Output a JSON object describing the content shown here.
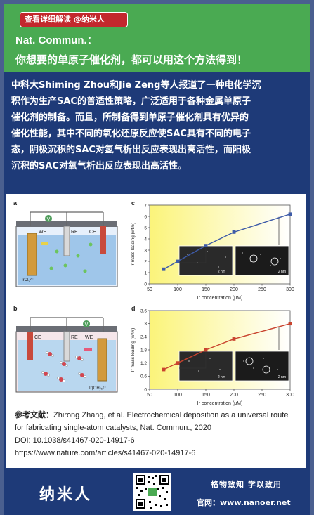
{
  "header": {
    "read_button": "查看详细解读   @纳米人",
    "journal": "Nat. Commun.：",
    "headline": "你想要的单原子催化剂，都可以用这个方法得到！"
  },
  "summary": {
    "lines": [
      "中科大Shiming Zhou和Jie Zeng等人报道了一种电化学沉",
      "积作为生产SAC的普适性策略，广泛适用于各种金属单原子",
      "催化剂的制备。而且，所制备得到单原子催化剂具有优异的",
      "催化性能，其中不同的氧化还原反应使SAC具有不同的电子",
      "态，阴极沉积的SAC对氢气析出反应表现出高活性，而阳极",
      "沉积的SAC对氧气析出反应表现出高活性。"
    ]
  },
  "figure": {
    "panel_a": "a",
    "panel_b": "b",
    "panel_c": "c",
    "panel_d": "d",
    "cell_a": {
      "we": "WE",
      "re": "RE",
      "ce": "CE",
      "v": "V",
      "precursor": "IrCl₆²⁻"
    },
    "cell_b": {
      "we": "WE",
      "re": "RE",
      "ce": "CE",
      "v": "V",
      "precursor": "Ir(OH)₆²⁻"
    },
    "scale_bar": "2 nm"
  },
  "chart_data": [
    {
      "type": "line",
      "panel": "c",
      "xlabel": "Ir concentration (μM)",
      "ylabel": "Ir mass loading (wt%)",
      "xlim": [
        50,
        300
      ],
      "ylim": [
        0,
        7
      ],
      "x_ticks": [
        50,
        100,
        150,
        200,
        250,
        300
      ],
      "y_ticks": [
        0,
        1,
        2,
        3,
        4,
        5,
        6,
        7
      ],
      "x": [
        75,
        100,
        150,
        200,
        300
      ],
      "values": [
        1.3,
        2.0,
        3.4,
        4.6,
        6.2
      ],
      "color": "#3e5ba8"
    },
    {
      "type": "line",
      "panel": "d",
      "xlabel": "Ir concentration (μM)",
      "ylabel": "Ir mass loading (wt%)",
      "xlim": [
        50,
        300
      ],
      "ylim": [
        0,
        3.6
      ],
      "x_ticks": [
        50,
        100,
        150,
        200,
        250,
        300
      ],
      "y_ticks": [
        0,
        0.6,
        1.2,
        1.8,
        2.4,
        3.0,
        3.6
      ],
      "x": [
        75,
        100,
        150,
        200,
        300
      ],
      "values": [
        0.9,
        1.2,
        1.8,
        2.3,
        3.0
      ],
      "color": "#c9432e"
    }
  ],
  "reference": {
    "label": "参考文献：",
    "line1": "Zhirong Zhang, et al. Electrochemical deposition as a universal route",
    "line2": "for fabricating single-atom catalysts, Nat. Commun., 2020",
    "doi": "DOI: 10.1038/s41467-020-14917-6",
    "url": "https://www.nature.com/articles/s41467-020-14917-6"
  },
  "footer": {
    "brand": "纳米人",
    "slogan": "格物致知   学以致用",
    "site": "官网：www.nanoer.net"
  },
  "colors": {
    "background": "#1e3a78",
    "header_green": "#4aaa52",
    "button_red": "#c3282d",
    "chart_gradient_from": "#fbf47a",
    "line_c": "#3e5ba8",
    "line_d": "#c9432e"
  }
}
